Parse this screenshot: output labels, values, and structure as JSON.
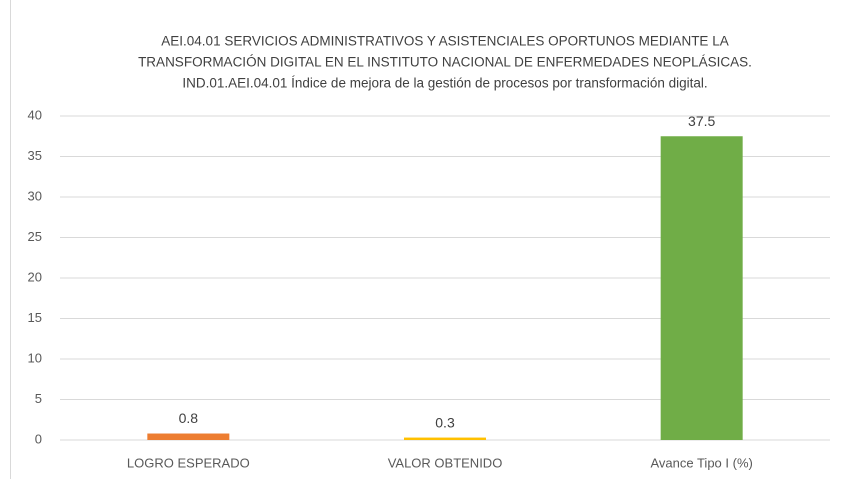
{
  "chart_data": {
    "type": "bar",
    "title": [
      "AEI.04.01 SERVICIOS ADMINISTRATIVOS Y ASISTENCIALES OPORTUNOS MEDIANTE LA",
      "TRANSFORMACIÓN DIGITAL EN EL INSTITUTO NACIONAL DE ENFERMEDADES NEOPLÁSICAS.",
      "IND.01.AEI.04.01 Índice de mejora de la gestión de procesos por transformación digital."
    ],
    "categories": [
      "LOGRO ESPERADO",
      "VALOR OBTENIDO",
      "Avance Tipo I (%)"
    ],
    "values": [
      0.8,
      0.3,
      37.5
    ],
    "colors": [
      "#ed7d31",
      "#ffc000",
      "#70ad47"
    ],
    "ylim": [
      0,
      40
    ],
    "yticks": [
      0,
      5,
      10,
      15,
      20,
      25,
      30,
      35,
      40
    ],
    "grid": true
  }
}
